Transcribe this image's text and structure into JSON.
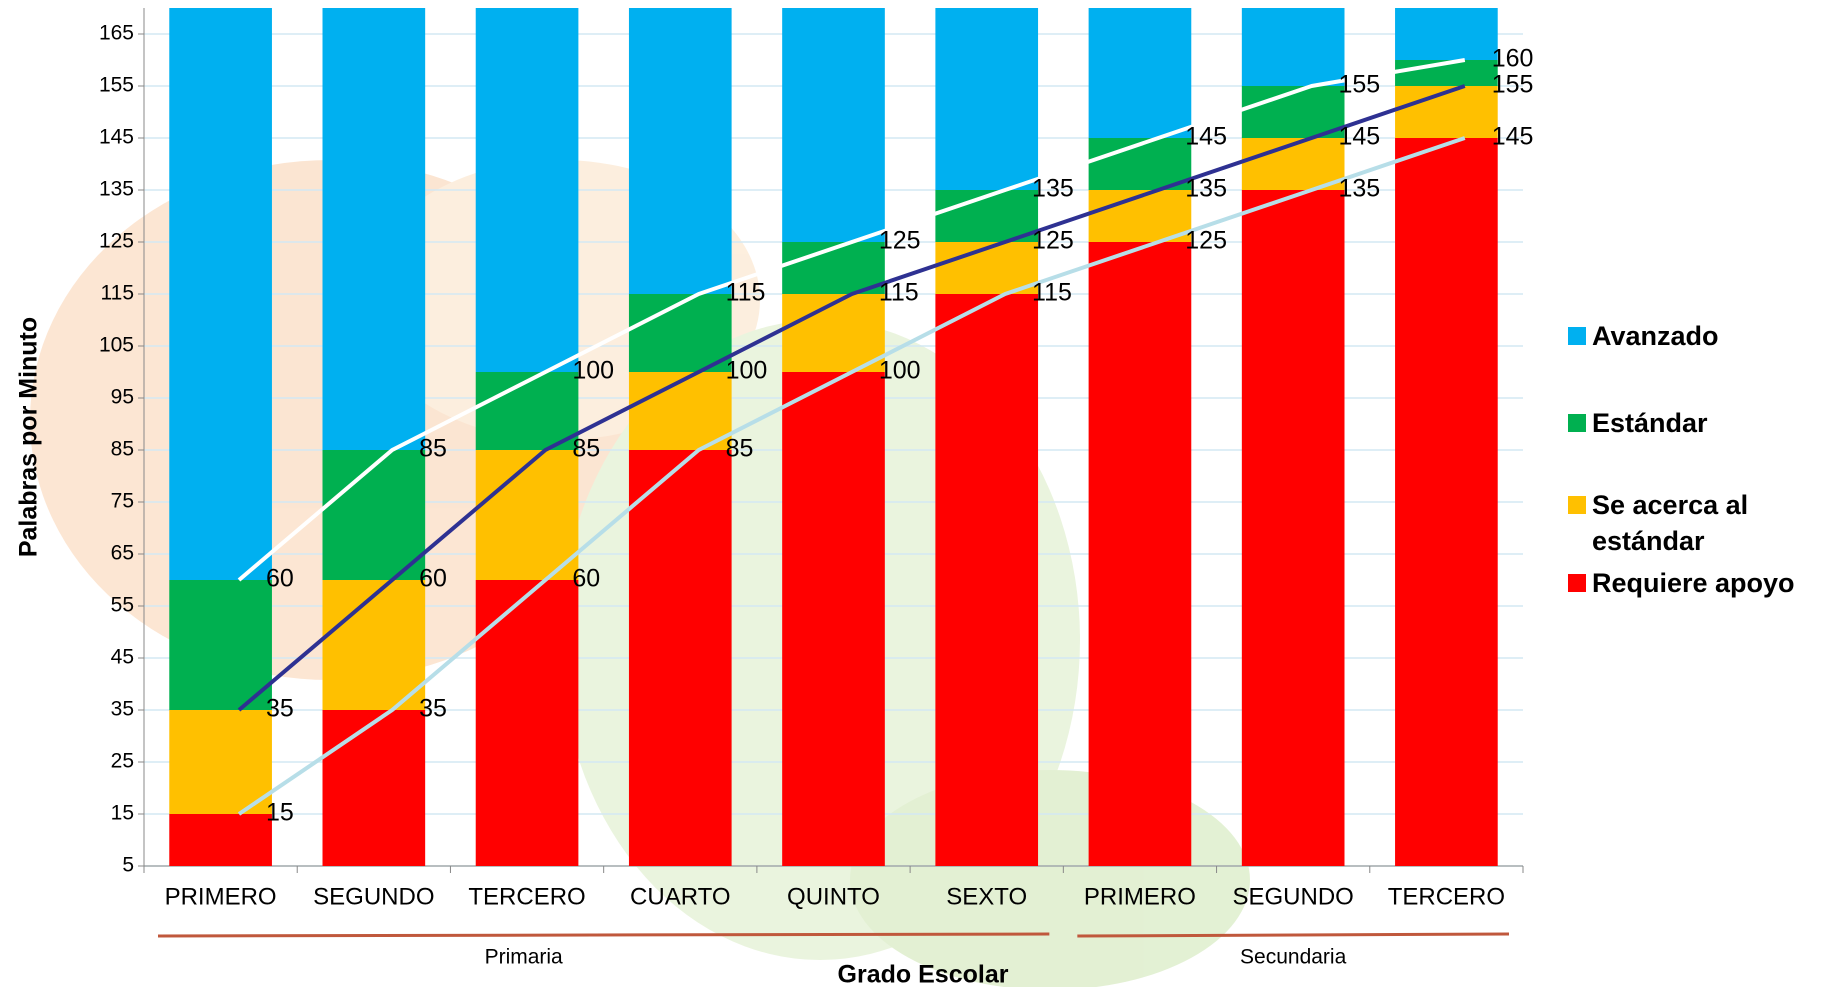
{
  "chart_data": {
    "type": "bar",
    "stacked": true,
    "y_label": "Palabras por Minuto",
    "x_label": "Grado Escolar",
    "categories": [
      "PRIMERO",
      "SEGUNDO",
      "TERCERO",
      "CUARTO",
      "QUINTO",
      "SEXTO",
      "PRIMERO",
      "SEGUNDO",
      "TERCERO"
    ],
    "groups": [
      {
        "label": "Primaria",
        "size": 6
      },
      {
        "label": "Secundaria",
        "size": 3
      }
    ],
    "series": [
      {
        "name": "Requiere apoyo",
        "color": "#ff0000",
        "values": [
          15,
          35,
          60,
          85,
          100,
          115,
          125,
          135,
          145
        ]
      },
      {
        "name": "Se acerca al estándar",
        "color": "#ffc000",
        "values": [
          20,
          25,
          25,
          15,
          15,
          10,
          10,
          10,
          10
        ]
      },
      {
        "name": "Estándar",
        "color": "#00b050",
        "values": [
          25,
          25,
          15,
          15,
          10,
          10,
          10,
          10,
          5
        ]
      },
      {
        "name": "Avanzado",
        "color": "#00b0f0",
        "values": [
          110,
          85,
          70,
          55,
          45,
          35,
          25,
          15,
          10
        ]
      }
    ],
    "lines": [
      {
        "color": "#b7dee8",
        "values": [
          15,
          35,
          60,
          85,
          100,
          115,
          125,
          135,
          145
        ]
      },
      {
        "color": "#2e3192",
        "values": [
          35,
          60,
          85,
          100,
          115,
          125,
          135,
          145,
          155
        ]
      },
      {
        "color": "#ffffff",
        "values": [
          60,
          85,
          100,
          115,
          125,
          135,
          145,
          155,
          160
        ]
      }
    ],
    "ylim": [
      5,
      170
    ],
    "yticks": [
      5,
      15,
      25,
      35,
      45,
      55,
      65,
      75,
      85,
      95,
      105,
      115,
      125,
      135,
      145,
      155,
      165
    ],
    "grid": true,
    "legend": "right"
  }
}
